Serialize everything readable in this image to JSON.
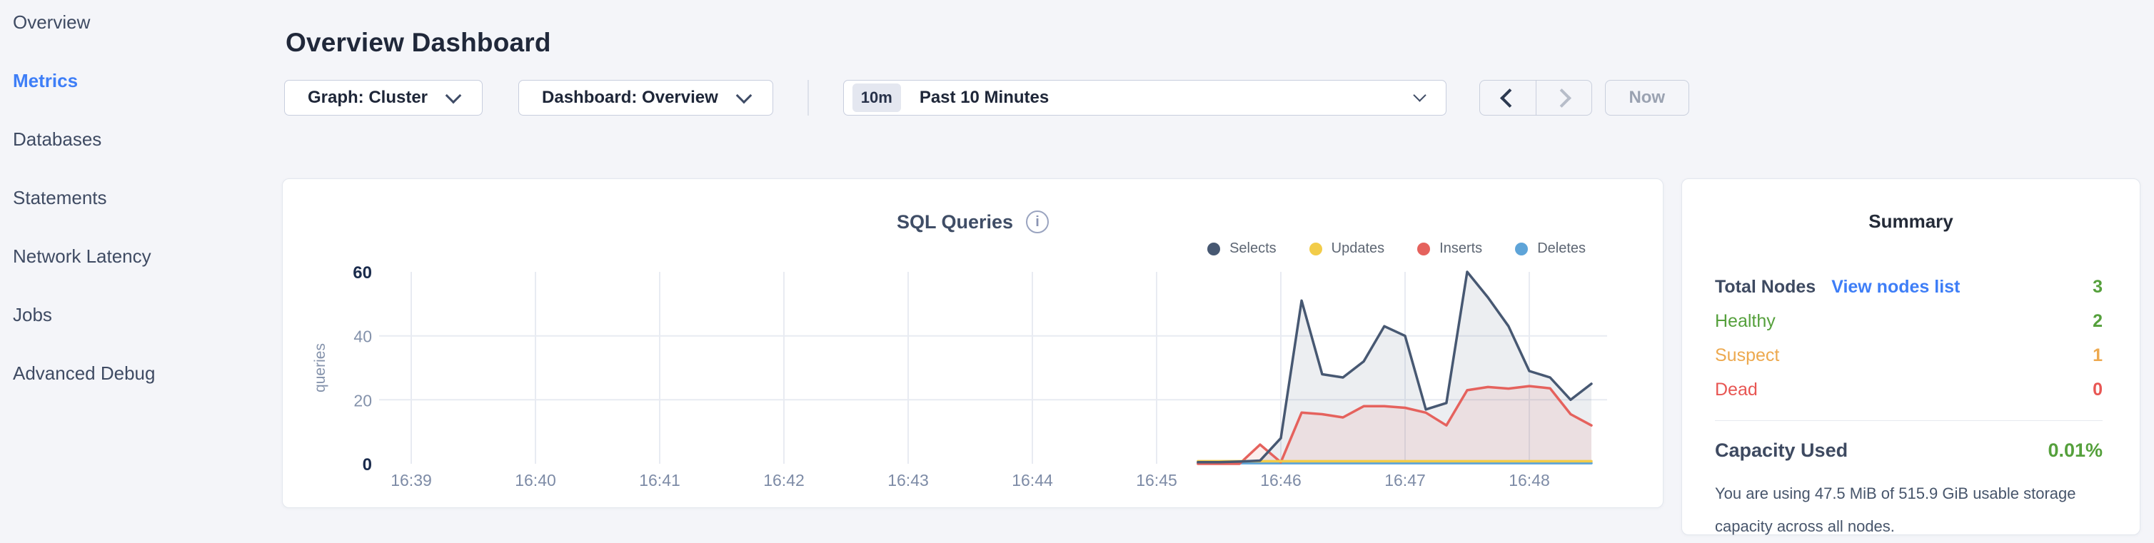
{
  "sidebar": {
    "items": [
      {
        "label": "Overview"
      },
      {
        "label": "Metrics"
      },
      {
        "label": "Databases"
      },
      {
        "label": "Statements"
      },
      {
        "label": "Network Latency"
      },
      {
        "label": "Jobs"
      },
      {
        "label": "Advanced Debug"
      }
    ],
    "active_item": "Metrics",
    "active_color": "#3e7ef7"
  },
  "header": {
    "title": "Overview Dashboard"
  },
  "toolbar": {
    "graph_dropdown": {
      "label": "Graph: Cluster"
    },
    "dashboard_dropdown": {
      "label": "Dashboard: Overview"
    },
    "time_range": {
      "badge": "10m",
      "label": "Past 10 Minutes"
    },
    "now_label": "Now"
  },
  "chart_data": {
    "type": "line",
    "title": "SQL Queries",
    "ylabel": "queries",
    "legend_position": "top-right",
    "grid": true,
    "x_tick_labels": [
      "16:39",
      "16:40",
      "16:41",
      "16:42",
      "16:43",
      "16:44",
      "16:45",
      "16:46",
      "16:47",
      "16:48"
    ],
    "x_tick_minutes": [
      0,
      1,
      2,
      3,
      4,
      5,
      6,
      7,
      8,
      9
    ],
    "x_unit": "minutes after 16:39, samples every 10s starting 16:45:20",
    "y_ticks": [
      0,
      20,
      40,
      60
    ],
    "y_grid": [
      20,
      40
    ],
    "ylim": [
      0,
      60
    ],
    "x_minutes": [
      6.333,
      6.5,
      6.667,
      6.833,
      7.0,
      7.167,
      7.333,
      7.5,
      7.667,
      7.833,
      8.0,
      8.167,
      8.333,
      8.5,
      8.667,
      8.833,
      9.0,
      9.167,
      9.333,
      9.5
    ],
    "series": [
      {
        "name": "Selects",
        "color": "#475872",
        "fill": "rgba(71,88,114,0.10)",
        "values": [
          0.5,
          0.5,
          0.7,
          1,
          8,
          51,
          28,
          27,
          32,
          43,
          40,
          17,
          19,
          60,
          52,
          43,
          29,
          27,
          20,
          25
        ]
      },
      {
        "name": "Updates",
        "color": "#f2cc49",
        "fill": null,
        "values": [
          0.8,
          0.8,
          0.8,
          0.8,
          0.8,
          0.8,
          0.8,
          0.8,
          0.8,
          0.8,
          0.8,
          0.8,
          0.8,
          0.8,
          0.8,
          0.8,
          0.8,
          0.8,
          0.8,
          0.8
        ]
      },
      {
        "name": "Inserts",
        "color": "#e5625d",
        "fill": "rgba(229,98,93,0.10)",
        "values": [
          0,
          0,
          0,
          6,
          0.5,
          16,
          15.5,
          14.5,
          18,
          18,
          17.5,
          16,
          12,
          23,
          24,
          23.5,
          24.3,
          23.6,
          15.5,
          12
        ]
      },
      {
        "name": "Deletes",
        "color": "#5ea4d8",
        "fill": null,
        "values": [
          0.2,
          0.2,
          0.2,
          0.2,
          0.2,
          0.2,
          0.2,
          0.2,
          0.2,
          0.2,
          0.2,
          0.2,
          0.2,
          0.2,
          0.2,
          0.2,
          0.2,
          0.2,
          0.2,
          0.2
        ]
      }
    ]
  },
  "summary": {
    "title": "Summary",
    "rows": [
      {
        "label": "Total Nodes",
        "link": "View nodes list",
        "value": "3",
        "label_color": "#3e4a61",
        "value_color": "#55a03c"
      },
      {
        "label": "Healthy",
        "value": "2",
        "label_color": "#55a03c",
        "value_color": "#55a03c"
      },
      {
        "label": "Suspect",
        "value": "1",
        "label_color": "#eda94f",
        "value_color": "#eda94f"
      },
      {
        "label": "Dead",
        "value": "0",
        "label_color": "#e85653",
        "value_color": "#e85653"
      }
    ],
    "capacity": {
      "label": "Capacity Used",
      "value": "0.01%",
      "value_color": "#55a03c",
      "description": "You are using 47.5 MiB of 515.9 GiB usable storage capacity across all nodes."
    },
    "link_color": "#3e7ef7"
  }
}
